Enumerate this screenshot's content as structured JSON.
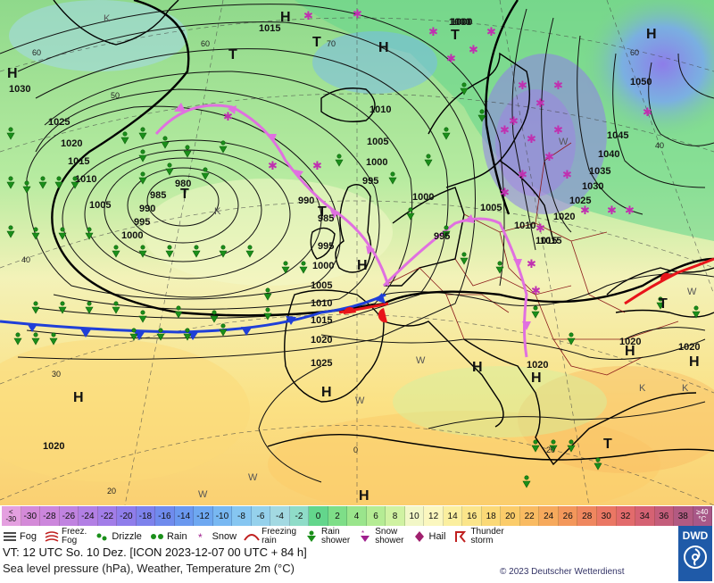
{
  "map": {
    "isobar_labels": [
      {
        "text": "1030"
      },
      {
        "text": "1025"
      },
      {
        "text": "1020"
      },
      {
        "text": "1015"
      },
      {
        "text": "1010"
      },
      {
        "text": "1005"
      },
      {
        "text": "1000"
      },
      {
        "text": "995"
      },
      {
        "text": "990"
      },
      {
        "text": "985"
      },
      {
        "text": "980"
      },
      {
        "text": "1015"
      },
      {
        "text": "1010"
      },
      {
        "text": "1005"
      },
      {
        "text": "1000"
      },
      {
        "text": "995"
      },
      {
        "text": "990"
      },
      {
        "text": "985"
      },
      {
        "text": "995"
      },
      {
        "text": "1000"
      },
      {
        "text": "1005"
      },
      {
        "text": "1010"
      },
      {
        "text": "1015"
      },
      {
        "text": "1020"
      },
      {
        "text": "1025"
      },
      {
        "text": "1000"
      },
      {
        "text": "995"
      },
      {
        "text": "1000"
      },
      {
        "text": "1005"
      },
      {
        "text": "1010"
      },
      {
        "text": "1015"
      },
      {
        "text": "1020"
      },
      {
        "text": "1025"
      },
      {
        "text": "1030"
      },
      {
        "text": "1035"
      },
      {
        "text": "1040"
      },
      {
        "text": "1045"
      },
      {
        "text": "1050"
      },
      {
        "text": "1020"
      },
      {
        "text": "1020"
      },
      {
        "text": "1020"
      },
      {
        "text": "1020"
      },
      {
        "text": "1015"
      },
      {
        "text": "1000"
      }
    ],
    "pressure_centers": [
      {
        "text": "H"
      },
      {
        "text": "H"
      },
      {
        "text": "T"
      },
      {
        "text": "T"
      },
      {
        "text": "H"
      },
      {
        "text": "T"
      },
      {
        "text": "H"
      },
      {
        "text": "T"
      },
      {
        "text": "T"
      },
      {
        "text": "H"
      },
      {
        "text": "H"
      },
      {
        "text": "H"
      },
      {
        "text": "H"
      },
      {
        "text": "H"
      },
      {
        "text": "H"
      },
      {
        "text": "T"
      },
      {
        "text": "T"
      },
      {
        "text": "H"
      },
      {
        "text": "H"
      }
    ],
    "small_labels": [
      {
        "text": "K"
      },
      {
        "text": "K"
      },
      {
        "text": "W"
      },
      {
        "text": "W"
      },
      {
        "text": "W"
      },
      {
        "text": "W"
      },
      {
        "text": "W"
      },
      {
        "text": "K"
      },
      {
        "text": "K"
      },
      {
        "text": "W"
      }
    ],
    "grid_labels": [
      {
        "text": "60"
      },
      {
        "text": "60"
      },
      {
        "text": "50"
      },
      {
        "text": "40"
      },
      {
        "text": "30"
      },
      {
        "text": "20"
      },
      {
        "text": "70"
      },
      {
        "text": "60"
      },
      {
        "text": "40"
      },
      {
        "text": "20"
      },
      {
        "text": "0"
      }
    ]
  },
  "colors": {
    "isobar": "#111111",
    "cold_front": "#1f3fd8",
    "warm_front": "#e8141a",
    "occlusion": "#e070e0",
    "rain": "#1a8f1a",
    "snow": "#a0208e",
    "coast": "#000000",
    "border": "#8b1a1a"
  },
  "scale": {
    "first": [
      "<",
      "-30"
    ],
    "last": [
      "≥40",
      "°C"
    ],
    "cells": [
      {
        "label": "-30",
        "color": "#d48ad8"
      },
      {
        "label": "-28",
        "color": "#cc86dc"
      },
      {
        "label": "-26",
        "color": "#c083e0"
      },
      {
        "label": "-24",
        "color": "#b27fe4"
      },
      {
        "label": "-22",
        "color": "#a27de8"
      },
      {
        "label": "-20",
        "color": "#8f7deb"
      },
      {
        "label": "-18",
        "color": "#7d82ec"
      },
      {
        "label": "-16",
        "color": "#6f8bed"
      },
      {
        "label": "-14",
        "color": "#6a98ef"
      },
      {
        "label": "-12",
        "color": "#6ea8f1"
      },
      {
        "label": "-10",
        "color": "#78b8f2"
      },
      {
        "label": "-8",
        "color": "#86c6f1"
      },
      {
        "label": "-6",
        "color": "#95d1ec"
      },
      {
        "label": "-4",
        "color": "#a3d9e2"
      },
      {
        "label": "-2",
        "color": "#8fdcc8"
      },
      {
        "label": "0",
        "color": "#63d68c"
      },
      {
        "label": "2",
        "color": "#7ede88"
      },
      {
        "label": "4",
        "color": "#9ae58c"
      },
      {
        "label": "6",
        "color": "#b5ec94"
      },
      {
        "label": "8",
        "color": "#d0f2a2"
      },
      {
        "label": "10",
        "color": "#f2f7c7"
      },
      {
        "label": "12",
        "color": "#fbf7bf"
      },
      {
        "label": "14",
        "color": "#fbef9f"
      },
      {
        "label": "16",
        "color": "#fbe58a"
      },
      {
        "label": "18",
        "color": "#fbd977"
      },
      {
        "label": "20",
        "color": "#fbcc6a"
      },
      {
        "label": "22",
        "color": "#f9bb62"
      },
      {
        "label": "24",
        "color": "#f6a95c"
      },
      {
        "label": "26",
        "color": "#f3975b"
      },
      {
        "label": "28",
        "color": "#ef875f"
      },
      {
        "label": "30",
        "color": "#ea7764"
      },
      {
        "label": "32",
        "color": "#e26b6c"
      },
      {
        "label": "34",
        "color": "#d56273"
      },
      {
        "label": "36",
        "color": "#c45d7b"
      },
      {
        "label": "38",
        "color": "#b25a82"
      }
    ]
  },
  "legend": {
    "fog": "Fog",
    "freezing_fog": [
      "Freez.",
      "Fog"
    ],
    "drizzle": "Drizzle",
    "rain": "Rain",
    "snow": "Snow",
    "freezing_rain": [
      "Freezing",
      "rain"
    ],
    "rain_shower": [
      "Rain",
      "shower"
    ],
    "snow_shower": [
      "Snow",
      "shower"
    ],
    "hail": "Hail",
    "thunderstorm": [
      "Thunder",
      "storm"
    ]
  },
  "info": {
    "line1": "VT: 12 UTC So.  10 Dez. [ICON 2023-12-07  00 UTC + 84 h]",
    "line2": "Sea level pressure (hPa), Weather, Temperature 2m (°C)",
    "copyright": "© 2023 Deutscher Wetterdienst",
    "logo": "DWD"
  }
}
